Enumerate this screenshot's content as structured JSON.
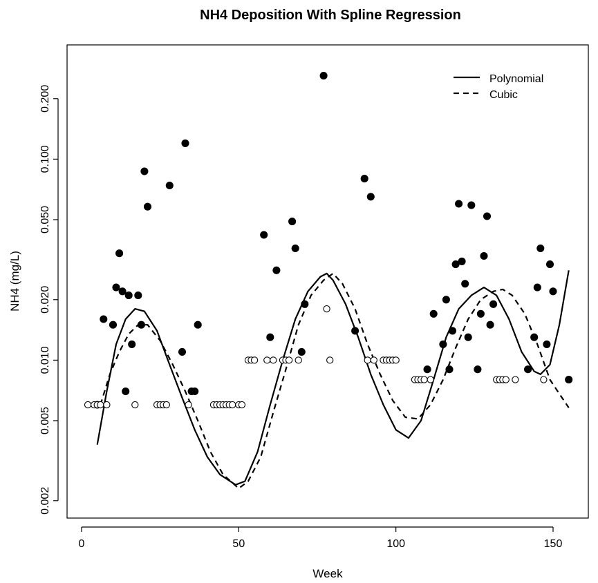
{
  "chart_data": {
    "type": "scatter",
    "title": "NH4 Deposition With Spline Regression",
    "xlabel": "Week",
    "ylabel": "NH4 (mg/L)",
    "xlim": [
      0,
      160
    ],
    "ylim": [
      0.0017,
      0.34
    ],
    "y_scale": "log",
    "x_ticks": [
      0,
      50,
      100,
      150
    ],
    "x_tick_labels": [
      "0",
      "50",
      "100",
      "150"
    ],
    "y_ticks": [
      0.002,
      0.005,
      0.01,
      0.02,
      0.05,
      0.1,
      0.2
    ],
    "y_tick_labels": [
      "0.002",
      "0.005",
      "0.010",
      "0.020",
      "0.050",
      "0.100",
      "0.200"
    ],
    "grid": false,
    "legend_position": "top-right",
    "legend": [
      {
        "label": "Polynomial",
        "line_style": "solid"
      },
      {
        "label": "Cubic",
        "line_style": "dashed"
      }
    ],
    "series": [
      {
        "marker": "filled-circle",
        "points": [
          [
            5,
            0.006
          ],
          [
            7,
            0.016
          ],
          [
            10,
            0.015
          ],
          [
            11,
            0.023
          ],
          [
            12,
            0.034
          ],
          [
            13,
            0.022
          ],
          [
            14,
            0.007
          ],
          [
            15,
            0.021
          ],
          [
            16,
            0.012
          ],
          [
            18,
            0.021
          ],
          [
            19,
            0.015
          ],
          [
            20,
            0.087
          ],
          [
            21,
            0.058
          ],
          [
            28,
            0.074
          ],
          [
            32,
            0.011
          ],
          [
            33,
            0.12
          ],
          [
            35,
            0.007
          ],
          [
            36,
            0.007
          ],
          [
            37,
            0.015
          ],
          [
            58,
            0.042
          ],
          [
            60,
            0.013
          ],
          [
            62,
            0.028
          ],
          [
            67,
            0.049
          ],
          [
            68,
            0.036
          ],
          [
            70,
            0.011
          ],
          [
            71,
            0.019
          ],
          [
            77,
            0.26
          ],
          [
            87,
            0.014
          ],
          [
            90,
            0.08
          ],
          [
            92,
            0.065
          ],
          [
            110,
            0.009
          ],
          [
            112,
            0.017
          ],
          [
            115,
            0.012
          ],
          [
            116,
            0.02
          ],
          [
            117,
            0.009
          ],
          [
            118,
            0.014
          ],
          [
            119,
            0.03
          ],
          [
            120,
            0.06
          ],
          [
            121,
            0.031
          ],
          [
            122,
            0.024
          ],
          [
            123,
            0.013
          ],
          [
            124,
            0.059
          ],
          [
            126,
            0.009
          ],
          [
            127,
            0.017
          ],
          [
            128,
            0.033
          ],
          [
            129,
            0.052
          ],
          [
            130,
            0.015
          ],
          [
            131,
            0.019
          ],
          [
            142,
            0.009
          ],
          [
            144,
            0.013
          ],
          [
            145,
            0.023
          ],
          [
            146,
            0.036
          ],
          [
            148,
            0.012
          ],
          [
            149,
            0.03
          ],
          [
            150,
            0.022
          ],
          [
            155,
            0.008
          ]
        ]
      },
      {
        "marker": "open-circle",
        "points": [
          [
            2,
            0.006
          ],
          [
            4,
            0.006
          ],
          [
            5,
            0.006
          ],
          [
            6,
            0.006
          ],
          [
            8,
            0.006
          ],
          [
            17,
            0.006
          ],
          [
            24,
            0.006
          ],
          [
            25,
            0.006
          ],
          [
            26,
            0.006
          ],
          [
            27,
            0.006
          ],
          [
            34,
            0.006
          ],
          [
            42,
            0.006
          ],
          [
            43,
            0.006
          ],
          [
            44,
            0.006
          ],
          [
            45,
            0.006
          ],
          [
            46,
            0.006
          ],
          [
            47,
            0.006
          ],
          [
            48,
            0.006
          ],
          [
            50,
            0.006
          ],
          [
            51,
            0.006
          ],
          [
            53,
            0.01
          ],
          [
            54,
            0.01
          ],
          [
            55,
            0.01
          ],
          [
            59,
            0.01
          ],
          [
            61,
            0.01
          ],
          [
            64,
            0.01
          ],
          [
            65,
            0.01
          ],
          [
            66,
            0.01
          ],
          [
            69,
            0.01
          ],
          [
            78,
            0.018
          ],
          [
            79,
            0.01
          ],
          [
            91,
            0.01
          ],
          [
            93,
            0.01
          ],
          [
            96,
            0.01
          ],
          [
            97,
            0.01
          ],
          [
            98,
            0.01
          ],
          [
            99,
            0.01
          ],
          [
            100,
            0.01
          ],
          [
            106,
            0.008
          ],
          [
            107,
            0.008
          ],
          [
            108,
            0.008
          ],
          [
            109,
            0.008
          ],
          [
            111,
            0.008
          ],
          [
            132,
            0.008
          ],
          [
            133,
            0.008
          ],
          [
            134,
            0.008
          ],
          [
            135,
            0.008
          ],
          [
            138,
            0.008
          ],
          [
            147,
            0.008
          ]
        ]
      },
      {
        "name": "Polynomial",
        "line_style": "solid",
        "points": [
          [
            5,
            0.0038
          ],
          [
            8,
            0.007
          ],
          [
            11,
            0.012
          ],
          [
            14,
            0.016
          ],
          [
            17,
            0.018
          ],
          [
            20,
            0.0175
          ],
          [
            24,
            0.014
          ],
          [
            28,
            0.0095
          ],
          [
            32,
            0.0065
          ],
          [
            36,
            0.0045
          ],
          [
            40,
            0.0033
          ],
          [
            44,
            0.0027
          ],
          [
            49,
            0.0024
          ],
          [
            52,
            0.0025
          ],
          [
            56,
            0.0035
          ],
          [
            60,
            0.006
          ],
          [
            64,
            0.01
          ],
          [
            68,
            0.016
          ],
          [
            72,
            0.022
          ],
          [
            76,
            0.026
          ],
          [
            78,
            0.027
          ],
          [
            80,
            0.025
          ],
          [
            84,
            0.019
          ],
          [
            88,
            0.013
          ],
          [
            92,
            0.0085
          ],
          [
            96,
            0.006
          ],
          [
            100,
            0.0045
          ],
          [
            104,
            0.0041
          ],
          [
            108,
            0.005
          ],
          [
            112,
            0.008
          ],
          [
            116,
            0.013
          ],
          [
            120,
            0.018
          ],
          [
            124,
            0.021
          ],
          [
            128,
            0.023
          ],
          [
            132,
            0.021
          ],
          [
            136,
            0.016
          ],
          [
            140,
            0.011
          ],
          [
            144,
            0.0088
          ],
          [
            146,
            0.0085
          ],
          [
            149,
            0.0095
          ],
          [
            152,
            0.015
          ],
          [
            155,
            0.028
          ]
        ]
      },
      {
        "name": "Cubic",
        "line_style": "dashed",
        "points": [
          [
            6,
            0.006
          ],
          [
            9,
            0.0085
          ],
          [
            12,
            0.011
          ],
          [
            15,
            0.0135
          ],
          [
            18,
            0.015
          ],
          [
            21,
            0.015
          ],
          [
            25,
            0.0125
          ],
          [
            29,
            0.0095
          ],
          [
            33,
            0.007
          ],
          [
            37,
            0.005
          ],
          [
            41,
            0.0035
          ],
          [
            45,
            0.0027
          ],
          [
            50,
            0.0023
          ],
          [
            53,
            0.0025
          ],
          [
            57,
            0.0033
          ],
          [
            61,
            0.0055
          ],
          [
            65,
            0.009
          ],
          [
            69,
            0.015
          ],
          [
            73,
            0.021
          ],
          [
            77,
            0.025
          ],
          [
            80,
            0.027
          ],
          [
            83,
            0.024
          ],
          [
            87,
            0.018
          ],
          [
            91,
            0.012
          ],
          [
            95,
            0.0085
          ],
          [
            99,
            0.0063
          ],
          [
            103,
            0.0052
          ],
          [
            107,
            0.0051
          ],
          [
            111,
            0.006
          ],
          [
            115,
            0.008
          ],
          [
            119,
            0.0115
          ],
          [
            123,
            0.016
          ],
          [
            127,
            0.02
          ],
          [
            131,
            0.022
          ],
          [
            134,
            0.0225
          ],
          [
            137,
            0.021
          ],
          [
            141,
            0.017
          ],
          [
            145,
            0.012
          ],
          [
            149,
            0.008
          ],
          [
            152,
            0.0068
          ],
          [
            155,
            0.0058
          ]
        ]
      }
    ]
  }
}
